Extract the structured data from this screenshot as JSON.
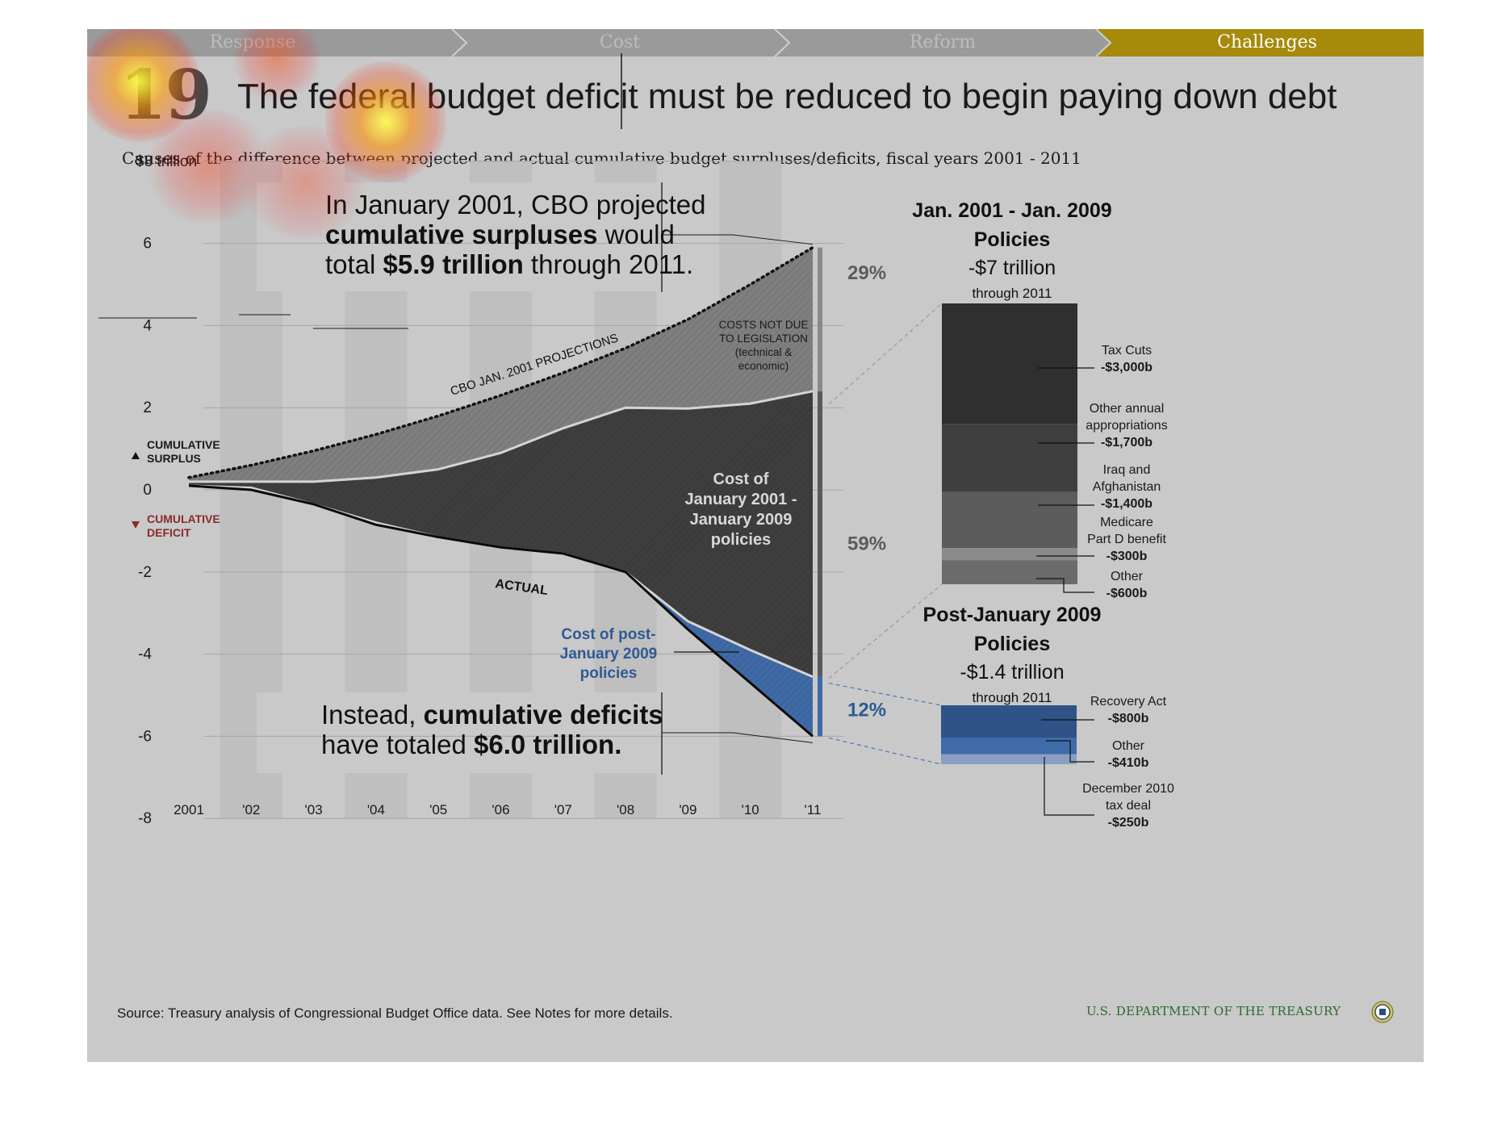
{
  "nav": {
    "tabs": [
      {
        "label": "Response",
        "active": false
      },
      {
        "label": "Cost",
        "active": false
      },
      {
        "label": "Reform",
        "active": false
      },
      {
        "label": "Challenges",
        "active": true
      }
    ],
    "inactive_color": "#9a9a9a",
    "active_color": "#a68a0a"
  },
  "slide": {
    "number": "19",
    "title": "The federal budget deficit must be reduced to begin paying down debt",
    "subtitle": "Causes of the difference between projected and actual cumulative budget surpluses/deficits, fiscal years 2001 - 2011",
    "source": "Source: Treasury analysis of Congressional Budget Office data. See Notes for more details.",
    "agency": "U.S. DEPARTMENT OF THE TREASURY"
  },
  "chart_data": [
    {
      "type": "area",
      "title": "",
      "xlabel": "",
      "ylabel": "",
      "categories": [
        "2001",
        "'02",
        "'03",
        "'04",
        "'05",
        "'06",
        "'07",
        "'08",
        "'09",
        "'10",
        "'11"
      ],
      "ylim": [
        -8,
        8
      ],
      "yticks": [
        {
          "value": 8,
          "label": "$8 trillion"
        },
        {
          "value": 6,
          "label": "6"
        },
        {
          "value": 4,
          "label": "4"
        },
        {
          "value": 2,
          "label": "2"
        },
        {
          "value": 0,
          "label": "0"
        },
        {
          "value": -2,
          "label": "-2"
        },
        {
          "value": -4,
          "label": "-4"
        },
        {
          "value": -6,
          "label": "-6"
        },
        {
          "value": -8,
          "label": "-8"
        }
      ],
      "series": [
        {
          "name": "CBO JAN. 2001 PROJECTIONS",
          "values": [
            0.3,
            0.6,
            0.95,
            1.35,
            1.8,
            2.3,
            2.85,
            3.45,
            4.15,
            5.0,
            5.9
          ]
        },
        {
          "name": "",
          "values": [
            0.2,
            0.2,
            0.2,
            0.3,
            0.5,
            0.9,
            1.5,
            2.0,
            1.98,
            2.1,
            2.4
          ]
        },
        {
          "name": "",
          "values": [
            0.1,
            0.05,
            -0.35,
            -0.8,
            -1.15,
            -1.4,
            -1.55,
            -2.0,
            -3.2,
            -3.9,
            -4.55
          ]
        },
        {
          "name": "ACTUAL",
          "values": [
            0.1,
            0.0,
            -0.35,
            -0.85,
            -1.15,
            -1.4,
            -1.55,
            -2.0,
            -3.4,
            -4.7,
            -6.0
          ]
        }
      ],
      "area_labels": {
        "technical": [
          "COSTS NOT DUE",
          "TO LEGISLATION",
          "(technical &",
          "economic)"
        ],
        "policies_2001_2009": [
          "Cost of",
          "January 2001 -",
          "January 2009",
          "policies"
        ],
        "post_2009": [
          "Cost of post-",
          "January 2009",
          "policies"
        ]
      },
      "percent_labels": [
        "29%",
        "59%",
        "12%"
      ],
      "legend": {
        "surplus": [
          "CUMULATIVE",
          "SURPLUS"
        ],
        "deficit": [
          "CUMULATIVE",
          "DEFICIT"
        ]
      },
      "annotation_top": {
        "line1": "In January 2001, CBO projected",
        "line2_bold": "cumulative surpluses",
        "line2_rest": " would",
        "line3_pre": "total ",
        "line3_bold": "$5.9 trillion",
        "line3_rest": " through 2011."
      },
      "annotation_bottom": {
        "line1_pre": "Instead, ",
        "line1_bold": "cumulative deficits",
        "line2_pre": "have totaled ",
        "line2_bold": "$6.0 trillion."
      },
      "colors": {
        "technical_area": "#7f7f7f",
        "policies_area": "#3e3e3e",
        "post2009_area": "#3f6aa6",
        "percent_text": "#5c5c5c",
        "post_text": "#2f5a94",
        "deficit_text": "#8b2a2a"
      }
    },
    {
      "type": "bar",
      "title": "Jan. 2001 - Jan. 2009 Policies",
      "total": "-$7 trillion",
      "subtitle": "through 2011",
      "categories": [
        "Tax Cuts",
        "Other annual appropriations",
        "Iraq and Afghanistan",
        "Medicare Part D benefit",
        "Other"
      ],
      "values": [
        -3000,
        -1700,
        -1400,
        -300,
        -600
      ],
      "value_labels": [
        "-$3,000b",
        "-$1,700b",
        "-$1,400b",
        "-$300b",
        "-$600b"
      ],
      "label_lines": [
        [
          "Tax Cuts"
        ],
        [
          "Other annual",
          "appropriations"
        ],
        [
          "Iraq and",
          "Afghanistan"
        ],
        [
          "Medicare",
          "Part D benefit"
        ],
        [
          "Other"
        ]
      ],
      "colors": [
        "#2f2f2f",
        "#3f3f3f",
        "#5c5c5c",
        "#8a8a8a",
        "#6b6b6b"
      ]
    },
    {
      "type": "bar",
      "title": "Post-January 2009 Policies",
      "total": "-$1.4 trillion",
      "subtitle": "through 2011",
      "categories": [
        "Recovery Act",
        "Other",
        "December 2010 tax deal"
      ],
      "values": [
        -800,
        -410,
        -250
      ],
      "value_labels": [
        "-$800b",
        "-$410b",
        "-$250b"
      ],
      "label_lines": [
        [
          "Recovery Act"
        ],
        [
          "Other"
        ],
        [
          "December 2010",
          "tax deal"
        ]
      ],
      "colors": [
        "#2f5287",
        "#3f6ba8",
        "#8a9ec2"
      ]
    }
  ]
}
